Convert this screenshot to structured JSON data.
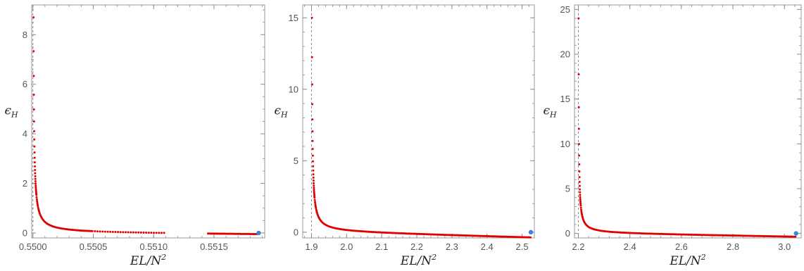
{
  "colors": {
    "points": "#e00000",
    "endpoint": "#3a86d6",
    "frame": "#9a9a9a",
    "ticks": "#8a8a8a",
    "asymptote": "#8a8a8a"
  },
  "chart_data": [
    {
      "type": "scatter",
      "xlabel": "EL/N²",
      "xlabel_base": "EL/N",
      "xlabel_sup": "2",
      "ylabel": "ϵ_H",
      "ylabel_base": "ϵ",
      "ylabel_sub": "H",
      "xlim": [
        0.54999,
        0.55192
      ],
      "ylim": [
        -0.2,
        9.2
      ],
      "xticks": [
        0.55,
        0.5505,
        0.551,
        0.5515
      ],
      "xtick_labels": [
        "0.5500",
        "0.5505",
        "0.5510",
        "0.5515"
      ],
      "xticks_minor_step": 0.0001,
      "yticks": [
        0,
        2,
        4,
        6,
        8
      ],
      "ytick_labels": [
        "0",
        "2",
        "4",
        "6",
        "8"
      ],
      "yticks_minor_step": 0.5,
      "asymptote_x": 0.55,
      "curve": {
        "x0": 0.55,
        "x1": 0.55187,
        "y_top": 8.7,
        "k": 4.5e-05,
        "c": -0.07,
        "a": 2e-07
      },
      "gap": [
        0.5511,
        0.55145
      ],
      "endpoint": {
        "x": 0.55187,
        "y": 0.0
      }
    },
    {
      "type": "scatter",
      "xlabel": "EL/N²",
      "xlabel_base": "EL/N",
      "xlabel_sup": "2",
      "ylabel": "ϵ_H",
      "ylabel_base": "ϵ",
      "ylabel_sub": "H",
      "xlim": [
        1.875,
        2.535
      ],
      "ylim": [
        -0.4,
        15.9
      ],
      "xticks": [
        1.9,
        2.0,
        2.1,
        2.2,
        2.3,
        2.4,
        2.5
      ],
      "xtick_labels": [
        "1.9",
        "2.0",
        "2.1",
        "2.2",
        "2.3",
        "2.4",
        "2.5"
      ],
      "xticks_minor_step": 0.02,
      "yticks": [
        0,
        5,
        10,
        15
      ],
      "ytick_labels": [
        "0",
        "5",
        "10",
        "15"
      ],
      "yticks_minor_step": 1,
      "asymptote_x": 1.9,
      "curve": {
        "x0": 1.9,
        "x1": 2.525,
        "y_top": 15.0,
        "k": 0.022,
        "c": -0.4,
        "a": 0.0003
      },
      "gap": null,
      "endpoint": {
        "x": 2.525,
        "y": 0.0
      }
    },
    {
      "type": "scatter",
      "xlabel": "EL/N²",
      "xlabel_base": "EL/N",
      "xlabel_sup": "2",
      "ylabel": "ϵ_H",
      "ylabel_base": "ϵ",
      "ylabel_sub": "H",
      "xlim": [
        2.185,
        3.065
      ],
      "ylim": [
        -0.5,
        25.5
      ],
      "xticks": [
        2.2,
        2.4,
        2.6,
        2.8,
        3.0
      ],
      "xtick_labels": [
        "2.2",
        "2.4",
        "2.6",
        "2.8",
        "3.0"
      ],
      "xticks_minor_step": 0.04,
      "yticks": [
        0,
        5,
        10,
        15,
        20,
        25
      ],
      "ytick_labels": [
        "0",
        "5",
        "10",
        "15",
        "20",
        "25"
      ],
      "yticks_minor_step": 1,
      "asymptote_x": 2.2,
      "curve": {
        "x0": 2.2,
        "x1": 3.045,
        "y_top": 24.0,
        "k": 0.03,
        "c": -0.4,
        "a": 0.0003
      },
      "gap": null,
      "endpoint": {
        "x": 3.045,
        "y": 0.0
      }
    }
  ]
}
